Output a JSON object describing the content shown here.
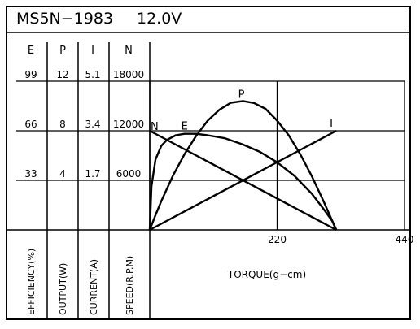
{
  "chart_data": {
    "type": "line",
    "title": "MS5N−1983",
    "voltage": "12.0V",
    "xlabel": "TORQUE(g−cm)",
    "xlim": [
      0,
      440
    ],
    "x_ticks": [
      {
        "value": 220,
        "label": "220"
      },
      {
        "value": 440,
        "label": "440"
      }
    ],
    "axes": [
      {
        "key": "E",
        "header": "E",
        "name": "EFFICIENCY(%)",
        "max": 99,
        "ticks": [
          "33",
          "66",
          "99"
        ]
      },
      {
        "key": "P",
        "header": "P",
        "name": "OUTPUT(W)",
        "max": 12,
        "ticks": [
          "4",
          "8",
          "12"
        ]
      },
      {
        "key": "I",
        "header": "I",
        "name": "CURRENT(A)",
        "max": 5.1,
        "ticks": [
          "1.7",
          "3.4",
          "5.1"
        ]
      },
      {
        "key": "N",
        "header": "N",
        "name": "SPEED(R.P.M)",
        "max": 18000,
        "ticks": [
          "6000",
          "12000",
          "18000"
        ]
      }
    ],
    "grid": true,
    "series": [
      {
        "name": "N",
        "axis": "N",
        "x": [
          0,
          322
        ],
        "y": [
          12000,
          0
        ]
      },
      {
        "name": "I",
        "axis": "I",
        "x": [
          0,
          322
        ],
        "y": [
          0,
          3.4
        ]
      },
      {
        "name": "P",
        "axis": "P",
        "x": [
          0,
          10,
          20,
          40,
          60,
          80,
          100,
          120,
          140,
          161,
          180,
          200,
          220,
          240,
          260,
          280,
          300,
          322
        ],
        "y": [
          0,
          1.2,
          2.33,
          4.38,
          6.11,
          7.59,
          8.81,
          9.69,
          10.26,
          10.4,
          10.24,
          9.77,
          8.82,
          7.64,
          6.1,
          4.32,
          2.33,
          0
        ]
      },
      {
        "name": "E",
        "axis": "E",
        "x": [
          0,
          3,
          10,
          20,
          30,
          45,
          60,
          80,
          100,
          130,
          160,
          190,
          220,
          250,
          280,
          300,
          315,
          322
        ],
        "y": [
          0,
          29,
          47,
          56,
          60,
          63,
          64,
          64,
          63,
          61,
          57,
          52,
          45,
          36,
          24,
          14,
          6,
          0
        ]
      }
    ],
    "curve_labels": [
      {
        "series": "N",
        "text": "N"
      },
      {
        "series": "E",
        "text": "E"
      },
      {
        "series": "P",
        "text": "P"
      },
      {
        "series": "I",
        "text": "I"
      }
    ]
  }
}
